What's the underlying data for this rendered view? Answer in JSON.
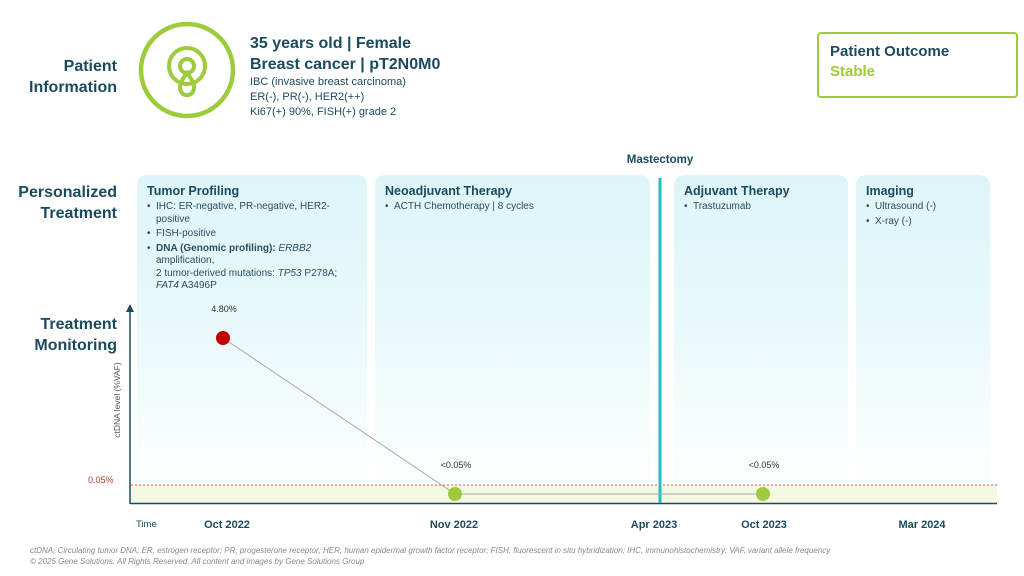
{
  "sections": {
    "patient_info": "Patient Information",
    "treatment": "Personalized Treatment",
    "monitoring": "Treatment Monitoring"
  },
  "patient": {
    "line1": "35 years old | Female",
    "line2": "Breast cancer | pT2N0M0",
    "details": [
      "IBC (invasive breast carcinoma)",
      "ER(-), PR(-), HER2(++)",
      "Ki67(+) 90%, FISH(+) grade 2"
    ],
    "icon": "ribbon-icon"
  },
  "outcome": {
    "label": "Patient Outcome",
    "value": "Stable"
  },
  "colors": {
    "accent": "#9dcb3c",
    "primary": "#1b4a5e",
    "mastectomy_line": "#21c0c6",
    "high_point": "#c00000",
    "threshold": "#d9534f",
    "band": "#f4f9e4"
  },
  "mastectomy": "Mastectomy",
  "cards": [
    {
      "title": "Tumor Profiling",
      "items": [
        "IHC: ER-negative, PR-negative, HER2-positive",
        "FISH-positive"
      ],
      "dna": {
        "bold": "DNA (Genomic profiling):",
        "gene1": "ERBB2",
        "t1": " amplification,",
        "t2": "2 tumor-derived mutations: ",
        "gene2": "TP53",
        "t3": " P278A;",
        "gene3": "FAT4",
        "t4": " A3496P"
      }
    },
    {
      "title": "Neoadjuvant Therapy",
      "items": [
        "ACTH Chemotherapy | 8 cycles"
      ]
    },
    {
      "title": "Adjuvant Therapy",
      "items": [
        "Trastuzumab"
      ]
    },
    {
      "title": "Imaging",
      "items": [
        "Ultrasound (-)",
        "X-ray (-)"
      ]
    }
  ],
  "chart_data": {
    "type": "line",
    "ylabel": "ctDNA level (%VAF)",
    "xlabel": "Time",
    "categories": [
      "Oct 2022",
      "Nov 2022",
      "Apr 2023",
      "Oct 2023",
      "Mar 2024"
    ],
    "points": [
      {
        "x": "Oct 2022",
        "value": 4.8,
        "label": "4.80%"
      },
      {
        "x": "Nov 2022",
        "value": 0.05,
        "label": "<0.05%"
      },
      {
        "x": "Oct 2023",
        "value": 0.05,
        "label": "<0.05%"
      }
    ],
    "threshold": {
      "value": 0.05,
      "label": "0.05%"
    },
    "event": {
      "x": "Apr 2023",
      "label": "Mastectomy"
    }
  },
  "footer": {
    "abbrev": "ctDNA, Circulating tumor DNA; ER, estrogen receptor; PR, progesterone receptor; HER, human epidermal growth factor receptor; FISH, fluorescent in situ hybridization; IHC, immunohistochemistry; VAF, variant allele frequency",
    "copyright": "© 2025 Gene Solutions. All Rights Reserved. All content and images by Gene Solutions Group"
  }
}
